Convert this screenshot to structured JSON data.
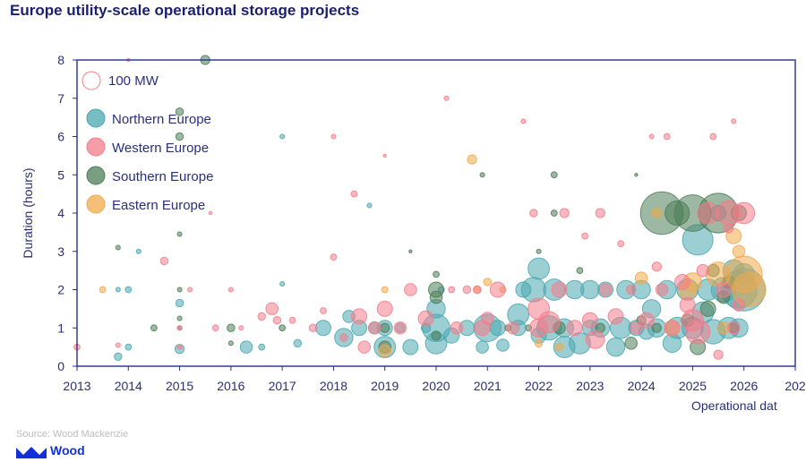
{
  "title": "Europe utility-scale operational storage projects",
  "source": "Source: Wood Mackenzie",
  "logo": {
    "icon": "wood-mackenzie-logo-icon",
    "text": "Wood"
  },
  "colors": {
    "axis": "#2b2f8a",
    "text": "#2a2f7a",
    "northern": "#4aa7b0",
    "western": "#f47c8a",
    "southern": "#4d7e57",
    "eastern": "#f0a94a"
  },
  "chart_data": {
    "type": "scatter",
    "subtype": "bubble",
    "title": "Europe utility-scale operational storage projects",
    "xlabel": "Operational dat",
    "ylabel": "Duration (hours)",
    "xlim": [
      2013,
      2027
    ],
    "ylim": [
      0,
      8
    ],
    "xticks": [
      "2013",
      "2014",
      "2015",
      "2016",
      "2017",
      "2018",
      "2019",
      "2020",
      "2021",
      "2022",
      "2023",
      "2024",
      "2025",
      "2026",
      "202"
    ],
    "yticks": [
      "0",
      "1",
      "2",
      "3",
      "4",
      "5",
      "6",
      "7",
      "8"
    ],
    "grid": false,
    "legend_position": "top-left",
    "size_reference": {
      "label": "100 MW",
      "mw": 100
    },
    "series": [
      {
        "name": "Northern Europe",
        "color": "#4aa7b0",
        "points": [
          [
            2013.8,
            0.25,
            5
          ],
          [
            2014.0,
            0.5,
            4
          ],
          [
            2014.0,
            2.0,
            4
          ],
          [
            2013.8,
            2.0,
            3
          ],
          [
            2014.2,
            3.0,
            3
          ],
          [
            2015.0,
            0.45,
            6
          ],
          [
            2015.0,
            1.65,
            5
          ],
          [
            2016.3,
            0.5,
            8
          ],
          [
            2016.6,
            0.5,
            4
          ],
          [
            2017.0,
            6.0,
            3
          ],
          [
            2017.0,
            2.15,
            3
          ],
          [
            2017.3,
            0.6,
            5
          ],
          [
            2017.8,
            1.0,
            10
          ],
          [
            2018.2,
            0.75,
            12
          ],
          [
            2018.3,
            1.3,
            8
          ],
          [
            2018.5,
            1.0,
            10
          ],
          [
            2018.7,
            4.2,
            3
          ],
          [
            2018.8,
            1.0,
            8
          ],
          [
            2019.0,
            0.5,
            14
          ],
          [
            2019.0,
            1.0,
            10
          ],
          [
            2019.3,
            1.0,
            6
          ],
          [
            2019.5,
            0.5,
            10
          ],
          [
            2019.8,
            1.0,
            6
          ],
          [
            2020.0,
            0.6,
            14
          ],
          [
            2020.0,
            1.0,
            18
          ],
          [
            2020.0,
            1.5,
            12
          ],
          [
            2020.1,
            2.0,
            4
          ],
          [
            2020.3,
            0.8,
            10
          ],
          [
            2020.6,
            1.0,
            10
          ],
          [
            2020.9,
            0.5,
            8
          ],
          [
            2021.0,
            1.0,
            18
          ],
          [
            2021.2,
            1.0,
            10
          ],
          [
            2021.3,
            0.55,
            8
          ],
          [
            2021.6,
            1.0,
            10
          ],
          [
            2021.6,
            1.35,
            14
          ],
          [
            2021.7,
            2.0,
            10
          ],
          [
            2021.9,
            2.0,
            16
          ],
          [
            2022.0,
            0.8,
            10
          ],
          [
            2022.0,
            2.55,
            14
          ],
          [
            2022.2,
            1.0,
            16
          ],
          [
            2022.3,
            2.0,
            14
          ],
          [
            2022.5,
            0.5,
            14
          ],
          [
            2022.5,
            1.0,
            12
          ],
          [
            2022.7,
            2.0,
            12
          ],
          [
            2022.8,
            0.6,
            14
          ],
          [
            2023.0,
            2.0,
            12
          ],
          [
            2023.0,
            1.0,
            10
          ],
          [
            2023.2,
            1.0,
            12
          ],
          [
            2023.3,
            2.0,
            10
          ],
          [
            2023.5,
            0.5,
            12
          ],
          [
            2023.6,
            1.0,
            14
          ],
          [
            2023.7,
            2.0,
            12
          ],
          [
            2023.9,
            1.0,
            10
          ],
          [
            2024.0,
            2.0,
            12
          ],
          [
            2024.1,
            0.9,
            10
          ],
          [
            2024.2,
            1.5,
            12
          ],
          [
            2024.3,
            1.0,
            12
          ],
          [
            2024.5,
            2.0,
            12
          ],
          [
            2024.6,
            0.6,
            12
          ],
          [
            2024.7,
            1.0,
            14
          ],
          [
            2024.9,
            2.0,
            14
          ],
          [
            2025.0,
            1.0,
            14
          ],
          [
            2025.1,
            3.3,
            20
          ],
          [
            2025.2,
            1.4,
            14
          ],
          [
            2025.3,
            2.0,
            14
          ],
          [
            2025.4,
            0.9,
            16
          ],
          [
            2025.5,
            4.0,
            10
          ],
          [
            2025.6,
            2.0,
            16
          ],
          [
            2025.7,
            1.0,
            14
          ],
          [
            2025.8,
            2.5,
            14
          ],
          [
            2025.9,
            2.0,
            24
          ],
          [
            2026.0,
            2.0,
            28
          ],
          [
            2025.9,
            1.0,
            12
          ],
          [
            2026.0,
            2.4,
            14
          ]
        ]
      },
      {
        "name": "Western Europe",
        "color": "#f47c8a",
        "points": [
          [
            2013.0,
            0.5,
            4
          ],
          [
            2013.8,
            0.55,
            3
          ],
          [
            2014.0,
            8.0,
            2
          ],
          [
            2014.7,
            2.75,
            5
          ],
          [
            2015.0,
            0.5,
            3
          ],
          [
            2015.0,
            1.0,
            3
          ],
          [
            2015.2,
            2.0,
            3
          ],
          [
            2015.6,
            4.0,
            2
          ],
          [
            2015.7,
            1.0,
            4
          ],
          [
            2016.0,
            2.0,
            3
          ],
          [
            2016.2,
            1.0,
            3
          ],
          [
            2016.6,
            1.3,
            5
          ],
          [
            2016.8,
            1.5,
            8
          ],
          [
            2016.9,
            1.2,
            5
          ],
          [
            2017.2,
            1.2,
            4
          ],
          [
            2017.6,
            1.0,
            5
          ],
          [
            2017.8,
            1.45,
            4
          ],
          [
            2018.0,
            6.0,
            3
          ],
          [
            2018.0,
            2.85,
            4
          ],
          [
            2018.2,
            0.75,
            5
          ],
          [
            2018.4,
            4.5,
            4
          ],
          [
            2018.5,
            1.3,
            10
          ],
          [
            2018.6,
            0.5,
            8
          ],
          [
            2018.8,
            1.0,
            8
          ],
          [
            2019.0,
            5.5,
            2
          ],
          [
            2019.0,
            1.5,
            10
          ],
          [
            2019.3,
            1.0,
            8
          ],
          [
            2019.5,
            2.0,
            8
          ],
          [
            2019.8,
            1.25,
            10
          ],
          [
            2020.2,
            7.0,
            3
          ],
          [
            2020.3,
            2.0,
            4
          ],
          [
            2020.4,
            1.0,
            8
          ],
          [
            2020.6,
            2.0,
            5
          ],
          [
            2020.8,
            2.0,
            5
          ],
          [
            2020.9,
            1.0,
            10
          ],
          [
            2021.0,
            1.25,
            8
          ],
          [
            2021.2,
            2.0,
            10
          ],
          [
            2021.5,
            1.0,
            8
          ],
          [
            2021.7,
            6.4,
            3
          ],
          [
            2021.9,
            4.0,
            5
          ],
          [
            2022.0,
            1.0,
            12
          ],
          [
            2022.0,
            1.5,
            14
          ],
          [
            2022.2,
            1.15,
            14
          ],
          [
            2022.4,
            2.0,
            10
          ],
          [
            2022.5,
            4.0,
            6
          ],
          [
            2022.7,
            1.0,
            10
          ],
          [
            2022.9,
            3.4,
            4
          ],
          [
            2023.0,
            1.2,
            10
          ],
          [
            2023.1,
            0.7,
            12
          ],
          [
            2023.2,
            4.0,
            6
          ],
          [
            2023.3,
            2.0,
            8
          ],
          [
            2023.5,
            1.3,
            10
          ],
          [
            2023.6,
            3.2,
            4
          ],
          [
            2023.8,
            2.0,
            6
          ],
          [
            2023.9,
            1.0,
            8
          ],
          [
            2024.1,
            1.2,
            10
          ],
          [
            2024.2,
            6.0,
            3
          ],
          [
            2024.3,
            2.6,
            6
          ],
          [
            2024.4,
            2.0,
            8
          ],
          [
            2024.5,
            6.0,
            4
          ],
          [
            2024.6,
            1.0,
            10
          ],
          [
            2024.8,
            2.2,
            10
          ],
          [
            2024.9,
            1.6,
            10
          ],
          [
            2025.0,
            1.2,
            14
          ],
          [
            2025.1,
            0.9,
            16
          ],
          [
            2025.2,
            2.5,
            8
          ],
          [
            2025.3,
            4.0,
            14
          ],
          [
            2025.4,
            6.0,
            4
          ],
          [
            2025.5,
            0.3,
            6
          ],
          [
            2025.6,
            2.0,
            10
          ],
          [
            2025.7,
            4.0,
            16
          ],
          [
            2025.8,
            6.4,
            3
          ],
          [
            2025.8,
            1.0,
            8
          ],
          [
            2025.9,
            1.6,
            8
          ],
          [
            2026.0,
            4.0,
            14
          ],
          [
            2025.7,
            3.6,
            6
          ]
        ]
      },
      {
        "name": "Southern Europe",
        "color": "#4d7e57",
        "points": [
          [
            2013.8,
            3.1,
            3
          ],
          [
            2014.5,
            1.0,
            4
          ],
          [
            2015.0,
            6.65,
            5
          ],
          [
            2015.0,
            6.0,
            5
          ],
          [
            2015.0,
            3.45,
            3
          ],
          [
            2015.0,
            2.0,
            3
          ],
          [
            2015.0,
            1.0,
            3
          ],
          [
            2015.0,
            1.25,
            3
          ],
          [
            2015.5,
            8.0,
            6
          ],
          [
            2016.0,
            1.0,
            5
          ],
          [
            2016.0,
            0.6,
            3
          ],
          [
            2017.0,
            1.0,
            4
          ],
          [
            2019.0,
            1.0,
            6
          ],
          [
            2019.0,
            0.5,
            8
          ],
          [
            2019.5,
            3.0,
            2
          ],
          [
            2020.0,
            2.0,
            10
          ],
          [
            2020.0,
            1.8,
            8
          ],
          [
            2020.0,
            2.4,
            4
          ],
          [
            2020.0,
            0.8,
            6
          ],
          [
            2020.9,
            5.0,
            3
          ],
          [
            2021.4,
            1.0,
            4
          ],
          [
            2021.8,
            1.0,
            4
          ],
          [
            2022.3,
            5.0,
            4
          ],
          [
            2022.3,
            4.0,
            4
          ],
          [
            2022.0,
            3.0,
            3
          ],
          [
            2022.4,
            1.0,
            8
          ],
          [
            2022.8,
            2.5,
            4
          ],
          [
            2023.2,
            1.0,
            6
          ],
          [
            2023.8,
            0.6,
            8
          ],
          [
            2023.9,
            5.0,
            2
          ],
          [
            2024.0,
            1.2,
            6
          ],
          [
            2024.3,
            1.0,
            6
          ],
          [
            2024.4,
            4.0,
            28
          ],
          [
            2024.7,
            4.0,
            16
          ],
          [
            2024.9,
            1.2,
            8
          ],
          [
            2025.0,
            4.0,
            24
          ],
          [
            2025.1,
            0.5,
            10
          ],
          [
            2025.3,
            1.5,
            10
          ],
          [
            2025.4,
            2.5,
            8
          ],
          [
            2025.5,
            4.0,
            26
          ],
          [
            2025.6,
            1.8,
            8
          ],
          [
            2025.7,
            2.2,
            8
          ],
          [
            2025.9,
            4.0,
            10
          ],
          [
            2025.8,
            1.0,
            6
          ]
        ]
      },
      {
        "name": "Eastern Europe",
        "color": "#f0a94a",
        "points": [
          [
            2013.5,
            2.0,
            4
          ],
          [
            2019.0,
            2.0,
            4
          ],
          [
            2019.0,
            0.4,
            8
          ],
          [
            2020.7,
            5.4,
            6
          ],
          [
            2020.8,
            2.0,
            5
          ],
          [
            2021.0,
            2.2,
            5
          ],
          [
            2021.3,
            2.0,
            4
          ],
          [
            2022.0,
            0.6,
            5
          ],
          [
            2022.4,
            0.5,
            5
          ],
          [
            2024.0,
            2.3,
            8
          ],
          [
            2024.3,
            4.0,
            6
          ],
          [
            2024.6,
            1.0,
            10
          ],
          [
            2024.9,
            2.0,
            12
          ],
          [
            2025.0,
            2.2,
            12
          ],
          [
            2025.5,
            2.4,
            16
          ],
          [
            2025.8,
            3.4,
            10
          ],
          [
            2025.9,
            3.0,
            8
          ],
          [
            2026.0,
            2.4,
            24
          ],
          [
            2026.1,
            2.0,
            22
          ],
          [
            2025.6,
            1.0,
            8
          ]
        ]
      }
    ]
  }
}
